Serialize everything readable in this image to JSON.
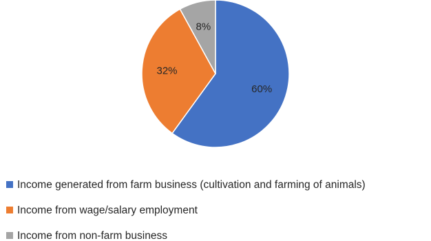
{
  "chart_data": {
    "type": "pie",
    "title": "",
    "categories": [
      "Income generated from farm business (cultivation and farming of animals)",
      "Income from wage/salary employment",
      "Income from non-farm business"
    ],
    "values": [
      60,
      32,
      8
    ],
    "data_labels": [
      "60%",
      "32%",
      "8%"
    ],
    "colors": [
      "#4472C4",
      "#ED7D31",
      "#A5A5A5"
    ],
    "start_angle_deg": 0,
    "direction": "clockwise",
    "legend_position": "bottom-left"
  }
}
